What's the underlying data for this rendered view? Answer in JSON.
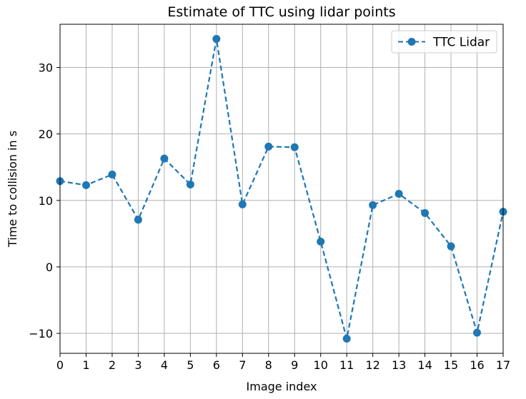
{
  "chart_data": {
    "type": "line",
    "title": "Estimate of TTC using lidar points",
    "xlabel": "Image index",
    "ylabel": "Time to collision in s",
    "x": [
      0,
      1,
      2,
      3,
      4,
      5,
      6,
      7,
      8,
      9,
      10,
      11,
      12,
      13,
      14,
      15,
      16,
      17
    ],
    "series": [
      {
        "name": "TTC Lidar",
        "values": [
          12.9,
          12.3,
          13.9,
          7.1,
          16.3,
          12.4,
          34.3,
          9.4,
          18.1,
          18.0,
          3.8,
          -10.8,
          9.3,
          11.0,
          8.1,
          3.1,
          -9.9,
          8.3
        ],
        "color": "#1f77b4",
        "line_style": "dashed",
        "marker": "circle"
      }
    ],
    "xlim": [
      0,
      17
    ],
    "ylim": [
      -13,
      36.5
    ],
    "xticks": [
      "0",
      "1",
      "2",
      "3",
      "4",
      "5",
      "6",
      "7",
      "8",
      "9",
      "10",
      "11",
      "12",
      "13",
      "14",
      "15",
      "16",
      "17"
    ],
    "yticks": [
      -10,
      0,
      10,
      20,
      30
    ],
    "ytick_labels": [
      "−10",
      "0",
      "10",
      "20",
      "30"
    ],
    "grid": true,
    "legend_position": "top-right"
  }
}
